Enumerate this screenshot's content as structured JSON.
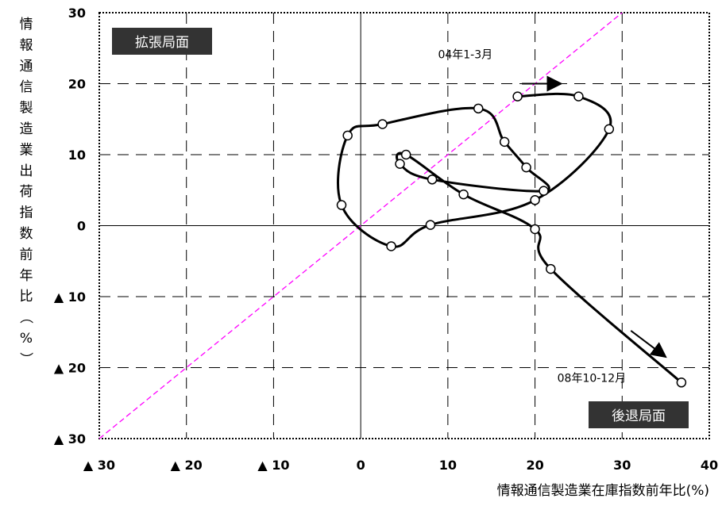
{
  "chart_data": {
    "type": "scatter",
    "title": "",
    "xlabel": "情報通信製造業在庫指数前年比(%)",
    "ylabel": "情報通信製造業出荷指数前年比（%）",
    "xlim": [
      -30,
      40
    ],
    "ylim": [
      -30,
      30
    ],
    "x_ticks": [
      -30,
      -20,
      -10,
      0,
      10,
      20,
      30,
      40
    ],
    "y_ticks": [
      -30,
      -20,
      -10,
      0,
      10,
      20,
      30
    ],
    "x_tick_labels": [
      "▲ 30",
      "▲ 20",
      "▲ 10",
      "0",
      "10",
      "20",
      "30",
      "40"
    ],
    "y_tick_labels": [
      "▲ 30",
      "▲ 20",
      "▲ 10",
      "0",
      "10",
      "20",
      "30"
    ],
    "grid": true,
    "series": [
      {
        "name": "",
        "type": "line-with-markers",
        "color": "#000000",
        "points": [
          [
            18,
            18.2
          ],
          [
            25,
            18.2
          ],
          [
            28.5,
            13.6
          ],
          [
            20,
            3.6
          ],
          [
            8,
            0.1
          ],
          [
            3.5,
            -2.9
          ],
          [
            -2.2,
            2.9
          ],
          [
            -1.5,
            12.7
          ],
          [
            2.5,
            14.3
          ],
          [
            13.5,
            16.5
          ],
          [
            16.5,
            11.8
          ],
          [
            19,
            8.2
          ],
          [
            21,
            4.9
          ],
          [
            8.2,
            6.5
          ],
          [
            4.5,
            8.7
          ],
          [
            5.2,
            10
          ],
          [
            11.8,
            4.4
          ],
          [
            20,
            -0.5
          ],
          [
            21.8,
            -6.1
          ],
          [
            36.8,
            -22.1
          ]
        ]
      }
    ],
    "reference_line": {
      "type": "diagonal",
      "from": [
        -30,
        -30
      ],
      "to": [
        30,
        30
      ],
      "color": "#ff00ff"
    },
    "annotations": [
      {
        "text": "04年1-3月",
        "x": 12,
        "y": 23.6
      },
      {
        "text": "08年10-12月",
        "x": 26.5,
        "y": -22
      }
    ],
    "arrows": [
      {
        "from": [
          18.5,
          20
        ],
        "to": [
          23,
          20
        ]
      },
      {
        "from": [
          31,
          -14.8
        ],
        "to": [
          35,
          -18.5
        ]
      }
    ],
    "phase_labels": [
      {
        "text": "拡張局面",
        "position": "top-left"
      },
      {
        "text": "後退局面",
        "position": "bottom-right"
      }
    ]
  }
}
